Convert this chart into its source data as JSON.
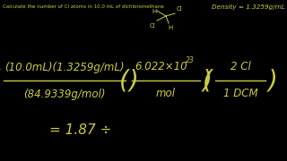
{
  "background_color": "#000000",
  "text_color": "#cccc44",
  "top_label": "Calculate the number of Cl atoms in 10.0 mL of dichloromethane",
  "density_label": "Density = 1.3259g/mL",
  "numerator_left": "(10.0mL)(1.3259g/mL)",
  "denominator_left": "(84.9339g/mol)",
  "fraction_right1_top": "6.022×10",
  "fraction_right1_exp": "23",
  "fraction_right1_bot": "mol",
  "fraction_right2_top": "2 Cl",
  "fraction_right2_bot": "1 DCM",
  "result_line": "= 1.87 ÷"
}
